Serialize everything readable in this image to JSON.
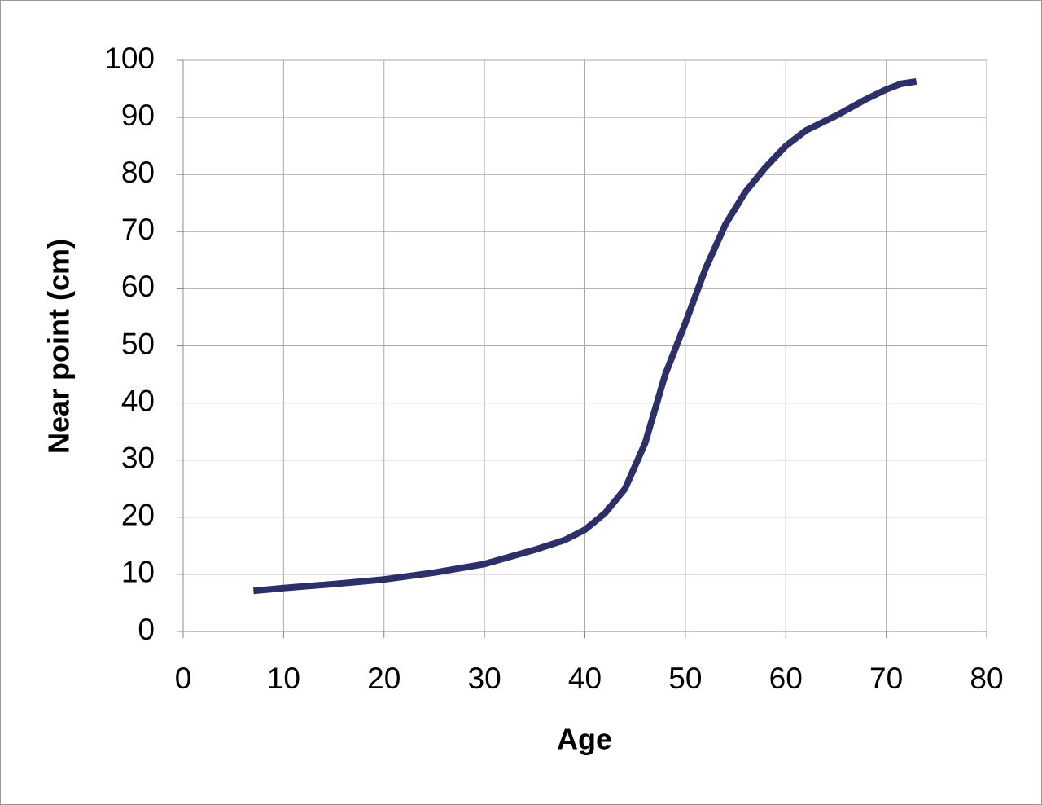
{
  "chart_data": {
    "type": "line",
    "xlabel": "Age",
    "ylabel": "Near point (cm)",
    "x": [
      7,
      10,
      15,
      20,
      25,
      30,
      35,
      38,
      40,
      42,
      44,
      46,
      48,
      50,
      52,
      54,
      56,
      58,
      60,
      62,
      65,
      68,
      70,
      71.5,
      73
    ],
    "series": [
      {
        "name": "Near point",
        "color": "#2b2f6b",
        "values": [
          7.1,
          7.6,
          8.3,
          9.1,
          10.3,
          11.8,
          14.3,
          16,
          17.8,
          20.7,
          25,
          33,
          45,
          54,
          63.5,
          71.3,
          77,
          81.3,
          85,
          87.7,
          90.3,
          93.2,
          94.9,
          95.9,
          96.3
        ]
      }
    ],
    "xlim": [
      0,
      80
    ],
    "xticks": [
      0,
      10,
      20,
      30,
      40,
      50,
      60,
      70,
      80
    ],
    "ylim": [
      0,
      100
    ],
    "yticks": [
      0,
      10,
      20,
      30,
      40,
      50,
      60,
      70,
      80,
      90,
      100
    ],
    "grid": true
  }
}
